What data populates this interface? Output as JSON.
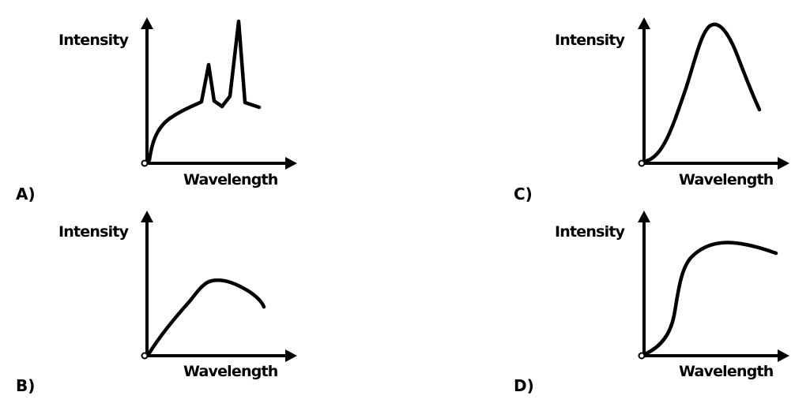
{
  "panels": [
    {
      "id": "A",
      "option_label": "A)",
      "y_axis_label": "Intensity",
      "x_axis_label": "Wavelength",
      "curve_shape": "rising-continuum-with-two-emission-peaks"
    },
    {
      "id": "B",
      "option_label": "B)",
      "y_axis_label": "Intensity",
      "x_axis_label": "Wavelength",
      "curve_shape": "rise-to-broad-peak-then-gentle-decline"
    },
    {
      "id": "C",
      "option_label": "C)",
      "y_axis_label": "Intensity",
      "x_axis_label": "Wavelength",
      "curve_shape": "single-tall-peak-blackbody-like"
    },
    {
      "id": "D",
      "option_label": "D)",
      "y_axis_label": "Intensity",
      "x_axis_label": "Wavelength",
      "curve_shape": "s-shaped-rise-to-plateau-slight-decline"
    }
  ],
  "colors": {
    "ink": "#000000",
    "background": "#ffffff"
  }
}
